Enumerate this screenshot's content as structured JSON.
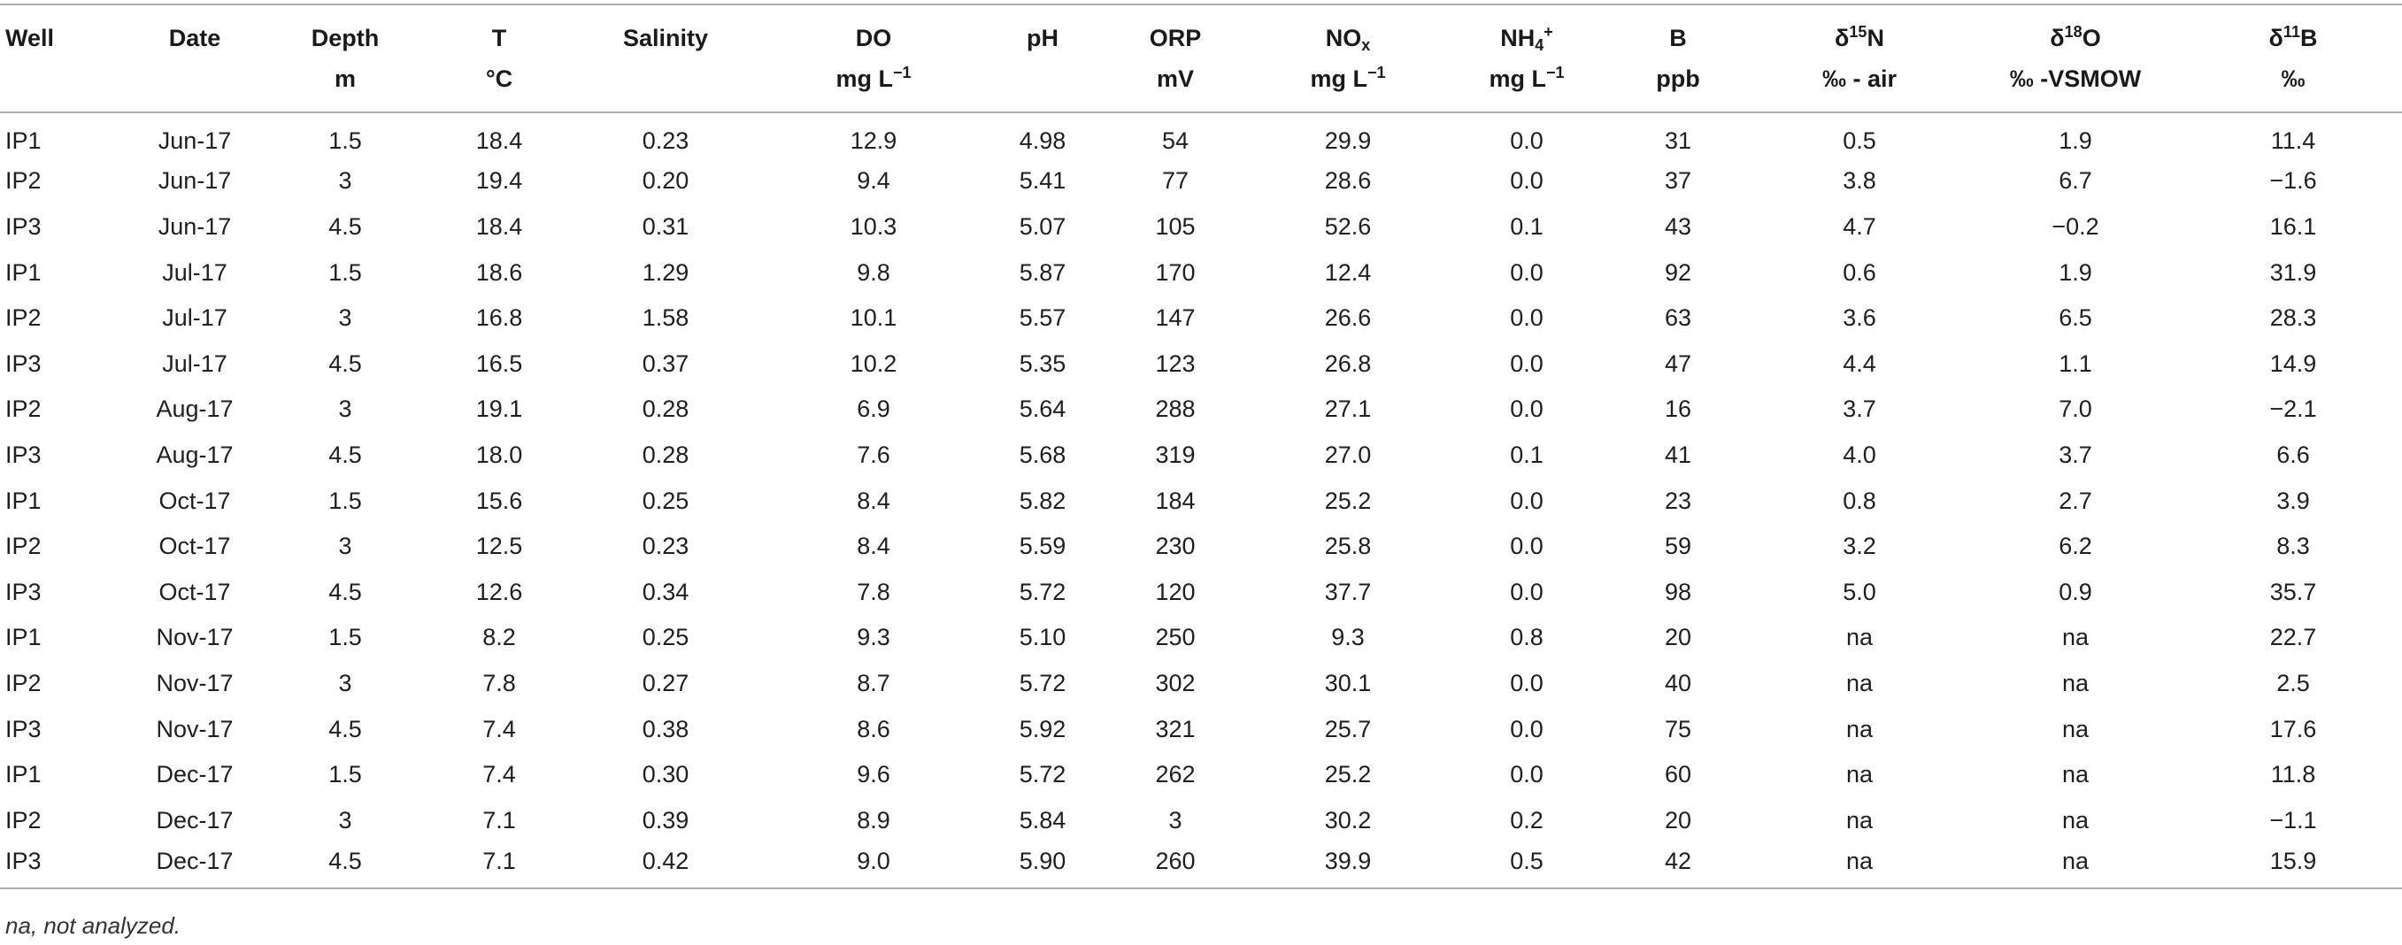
{
  "columns": [
    {
      "key": "well",
      "line1": "Well",
      "line2": ""
    },
    {
      "key": "date",
      "line1": "Date",
      "line2": ""
    },
    {
      "key": "depth",
      "line1": "Depth",
      "line2": "m"
    },
    {
      "key": "t",
      "line1": "T",
      "line2": "°C"
    },
    {
      "key": "salinity",
      "line1": "Salinity",
      "line2": ""
    },
    {
      "key": "do",
      "line1": "DO",
      "line2": "mg L",
      "line2_sup": "−1"
    },
    {
      "key": "ph",
      "line1": "pH",
      "line2": ""
    },
    {
      "key": "orp",
      "line1": "ORP",
      "line2": "mV"
    },
    {
      "key": "nox",
      "line1": "NO",
      "line1_sub": "x",
      "line2": "mg L",
      "line2_sup": "−1"
    },
    {
      "key": "nh4",
      "line1": "NH",
      "line1_sub": "4",
      "line1_sup": "+",
      "line2": "mg L",
      "line2_sup": "−1"
    },
    {
      "key": "b",
      "line1": "B",
      "line2": "ppb"
    },
    {
      "key": "d15n",
      "line1_pre": "δ",
      "line1_sup": "15",
      "line1": "N",
      "line2": "‰ - air"
    },
    {
      "key": "d18o",
      "line1_pre": "δ",
      "line1_sup": "18",
      "line1": "O",
      "line2": "‰ -VSMOW"
    },
    {
      "key": "d11b",
      "line1_pre": "δ",
      "line1_sup": "11",
      "line1": "B",
      "line2": "‰"
    }
  ],
  "rows": [
    [
      "IP1",
      "Jun-17",
      "1.5",
      "18.4",
      "0.23",
      "12.9",
      "4.98",
      "54",
      "29.9",
      "0.0",
      "31",
      "0.5",
      "1.9",
      "11.4"
    ],
    [
      "IP2",
      "Jun-17",
      "3",
      "19.4",
      "0.20",
      "9.4",
      "5.41",
      "77",
      "28.6",
      "0.0",
      "37",
      "3.8",
      "6.7",
      "−1.6"
    ],
    [
      "IP3",
      "Jun-17",
      "4.5",
      "18.4",
      "0.31",
      "10.3",
      "5.07",
      "105",
      "52.6",
      "0.1",
      "43",
      "4.7",
      "−0.2",
      "16.1"
    ],
    [
      "IP1",
      "Jul-17",
      "1.5",
      "18.6",
      "1.29",
      "9.8",
      "5.87",
      "170",
      "12.4",
      "0.0",
      "92",
      "0.6",
      "1.9",
      "31.9"
    ],
    [
      "IP2",
      "Jul-17",
      "3",
      "16.8",
      "1.58",
      "10.1",
      "5.57",
      "147",
      "26.6",
      "0.0",
      "63",
      "3.6",
      "6.5",
      "28.3"
    ],
    [
      "IP3",
      "Jul-17",
      "4.5",
      "16.5",
      "0.37",
      "10.2",
      "5.35",
      "123",
      "26.8",
      "0.0",
      "47",
      "4.4",
      "1.1",
      "14.9"
    ],
    [
      "IP2",
      "Aug-17",
      "3",
      "19.1",
      "0.28",
      "6.9",
      "5.64",
      "288",
      "27.1",
      "0.0",
      "16",
      "3.7",
      "7.0",
      "−2.1"
    ],
    [
      "IP3",
      "Aug-17",
      "4.5",
      "18.0",
      "0.28",
      "7.6",
      "5.68",
      "319",
      "27.0",
      "0.1",
      "41",
      "4.0",
      "3.7",
      "6.6"
    ],
    [
      "IP1",
      "Oct-17",
      "1.5",
      "15.6",
      "0.25",
      "8.4",
      "5.82",
      "184",
      "25.2",
      "0.0",
      "23",
      "0.8",
      "2.7",
      "3.9"
    ],
    [
      "IP2",
      "Oct-17",
      "3",
      "12.5",
      "0.23",
      "8.4",
      "5.59",
      "230",
      "25.8",
      "0.0",
      "59",
      "3.2",
      "6.2",
      "8.3"
    ],
    [
      "IP3",
      "Oct-17",
      "4.5",
      "12.6",
      "0.34",
      "7.8",
      "5.72",
      "120",
      "37.7",
      "0.0",
      "98",
      "5.0",
      "0.9",
      "35.7"
    ],
    [
      "IP1",
      "Nov-17",
      "1.5",
      "8.2",
      "0.25",
      "9.3",
      "5.10",
      "250",
      "9.3",
      "0.8",
      "20",
      "na",
      "na",
      "22.7"
    ],
    [
      "IP2",
      "Nov-17",
      "3",
      "7.8",
      "0.27",
      "8.7",
      "5.72",
      "302",
      "30.1",
      "0.0",
      "40",
      "na",
      "na",
      "2.5"
    ],
    [
      "IP3",
      "Nov-17",
      "4.5",
      "7.4",
      "0.38",
      "8.6",
      "5.92",
      "321",
      "25.7",
      "0.0",
      "75",
      "na",
      "na",
      "17.6"
    ],
    [
      "IP1",
      "Dec-17",
      "1.5",
      "7.4",
      "0.30",
      "9.6",
      "5.72",
      "262",
      "25.2",
      "0.0",
      "60",
      "na",
      "na",
      "11.8"
    ],
    [
      "IP2",
      "Dec-17",
      "3",
      "7.1",
      "0.39",
      "8.9",
      "5.84",
      "3",
      "30.2",
      "0.2",
      "20",
      "na",
      "na",
      "−1.1"
    ],
    [
      "IP3",
      "Dec-17",
      "4.5",
      "7.1",
      "0.42",
      "9.0",
      "5.90",
      "260",
      "39.9",
      "0.5",
      "42",
      "na",
      "na",
      "15.9"
    ]
  ],
  "footnote": "na, not analyzed."
}
